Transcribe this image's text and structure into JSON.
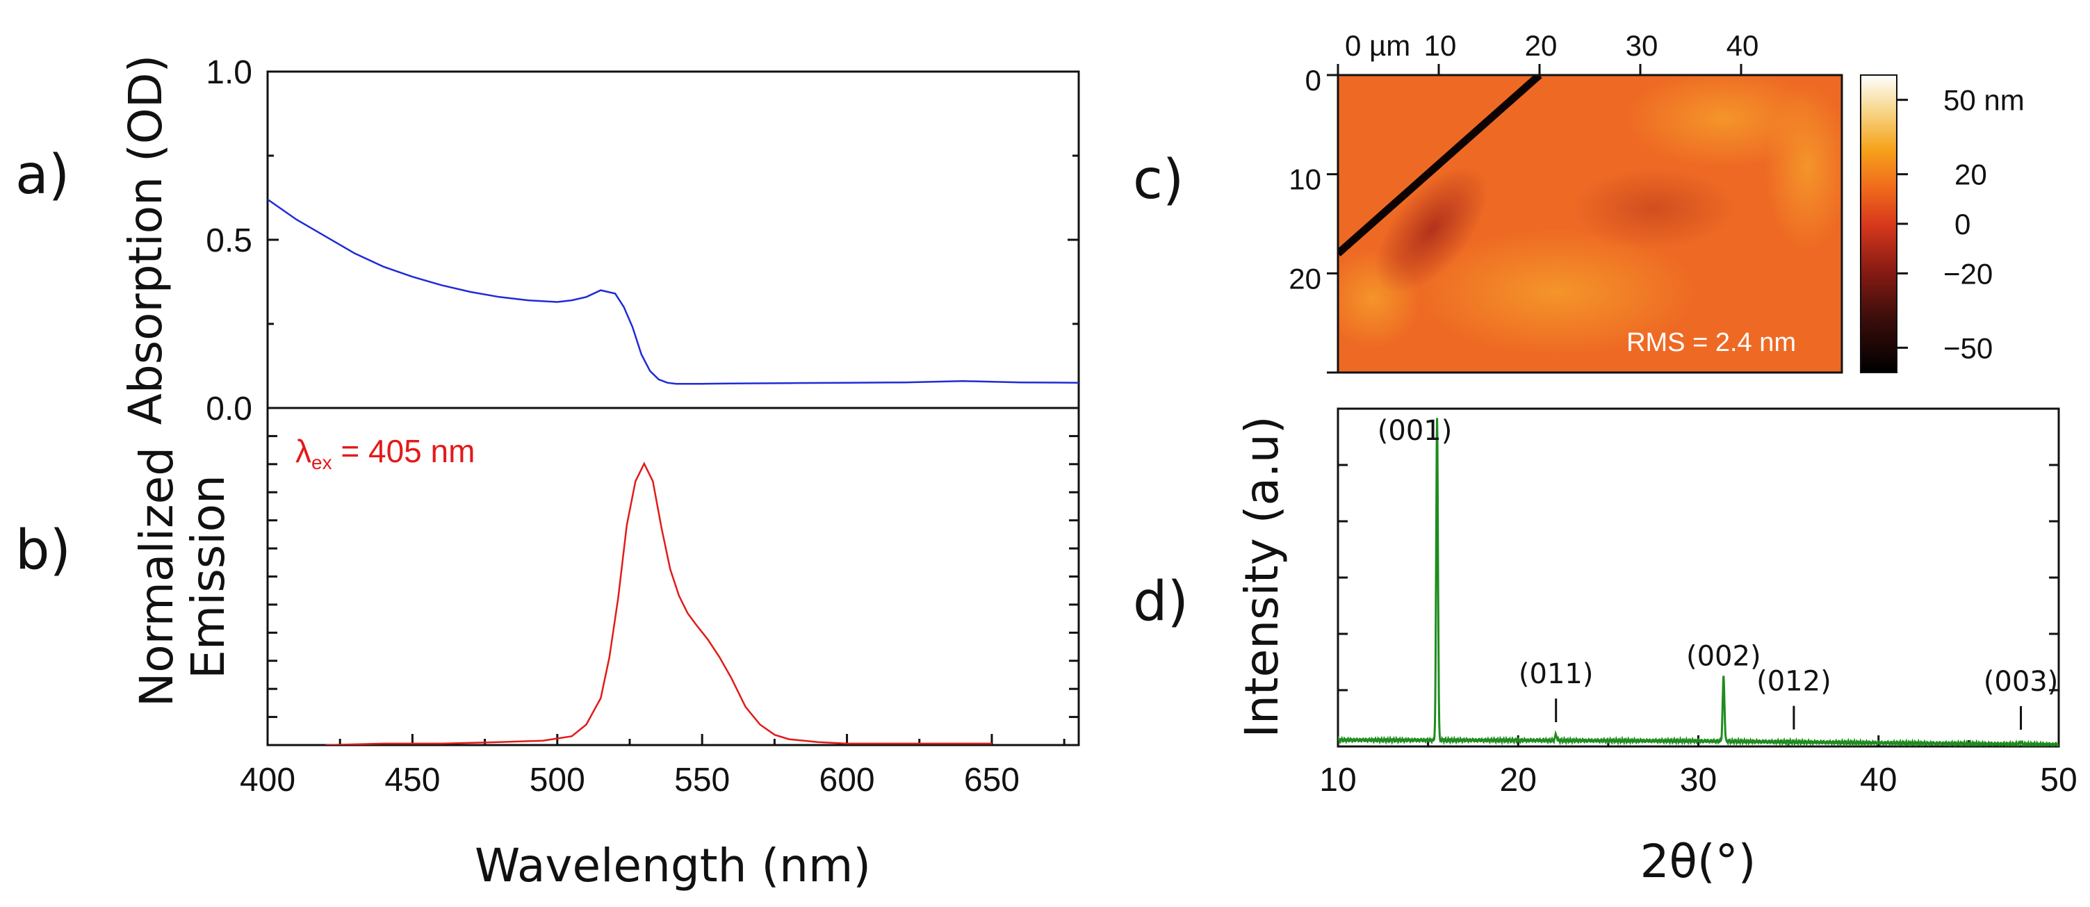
{
  "panel_labels": {
    "a": "a)",
    "b": "b)",
    "c": "c)",
    "d": "d)"
  },
  "chart_data": [
    {
      "id": "a",
      "type": "line",
      "title": "",
      "xlabel": "",
      "ylabel": "Absorption (OD)",
      "xlim": [
        400,
        680
      ],
      "ylim": [
        0,
        1.0
      ],
      "yticks": [
        0.0,
        0.5,
        1.0
      ],
      "ytick_labels": [
        "0.0",
        "0.5",
        "1.0"
      ],
      "color": "#1f2bd6",
      "series": [
        {
          "name": "Absorption",
          "x": [
            400,
            410,
            420,
            430,
            440,
            450,
            460,
            470,
            480,
            490,
            500,
            505,
            510,
            515,
            520,
            523,
            526,
            529,
            532,
            535,
            538,
            541,
            545,
            550,
            560,
            580,
            600,
            620,
            640,
            650,
            660,
            680
          ],
          "y": [
            0.62,
            0.56,
            0.51,
            0.46,
            0.42,
            0.39,
            0.365,
            0.345,
            0.33,
            0.32,
            0.315,
            0.32,
            0.33,
            0.35,
            0.34,
            0.3,
            0.24,
            0.16,
            0.11,
            0.085,
            0.075,
            0.072,
            0.072,
            0.072,
            0.073,
            0.074,
            0.075,
            0.076,
            0.08,
            0.078,
            0.076,
            0.075
          ]
        }
      ]
    },
    {
      "id": "b",
      "type": "line",
      "title": "",
      "xlabel": "Wavelength (nm)",
      "ylabel_line1": "Normalized",
      "ylabel_line2": "Emission",
      "xlim": [
        400,
        680
      ],
      "ylim": [
        0,
        1.15
      ],
      "xticks": [
        400,
        450,
        500,
        550,
        600,
        650
      ],
      "xtick_labels": [
        "400",
        "450",
        "500",
        "550",
        "600",
        "650"
      ],
      "annotation": {
        "prefix": "λ",
        "sub": "ex",
        "suffix": " = 405 nm"
      },
      "color": "#e31a1a",
      "series": [
        {
          "name": "Emission",
          "x": [
            420,
            440,
            460,
            480,
            495,
            505,
            510,
            515,
            518,
            521,
            524,
            527,
            530,
            533,
            536,
            539,
            542,
            545,
            548,
            552,
            556,
            560,
            565,
            570,
            575,
            580,
            590,
            600,
            620,
            640,
            650
          ],
          "y": [
            0.0,
            0.005,
            0.005,
            0.01,
            0.015,
            0.03,
            0.07,
            0.16,
            0.3,
            0.5,
            0.75,
            0.9,
            0.96,
            0.9,
            0.74,
            0.6,
            0.51,
            0.45,
            0.41,
            0.36,
            0.3,
            0.23,
            0.13,
            0.07,
            0.035,
            0.02,
            0.01,
            0.005,
            0.005,
            0.005,
            0.005
          ]
        }
      ]
    },
    {
      "id": "c",
      "type": "heatmap",
      "title": "",
      "x_ticks": [
        0,
        10,
        20,
        30,
        40
      ],
      "x_tick_labels": [
        "0 µm",
        "10",
        "20",
        "30",
        "40"
      ],
      "xlim": [
        0,
        50
      ],
      "y_ticks": [
        0,
        10,
        20
      ],
      "y_tick_labels": [
        "0",
        "10",
        "20"
      ],
      "ylim": [
        0,
        30
      ],
      "colorbar_ticks": [
        50,
        20,
        0,
        -20,
        -50
      ],
      "colorbar_tick_labels": [
        "50 nm",
        "20",
        "0",
        "−20",
        "−50"
      ],
      "colorbar_range": [
        -60,
        60
      ],
      "annotation": "RMS = 2.4 nm",
      "base_color": "#ee6a24",
      "scratch": {
        "from": [
          0,
          18
        ],
        "to": [
          20,
          0
        ]
      }
    },
    {
      "id": "d",
      "type": "line",
      "title": "",
      "xlabel": "2θ(°)",
      "ylabel": "Intensity (a.u)",
      "xlim": [
        10,
        50
      ],
      "ylim": [
        0,
        1.05
      ],
      "xticks": [
        10,
        20,
        30,
        40,
        50
      ],
      "xtick_labels": [
        "10",
        "20",
        "30",
        "40",
        "50"
      ],
      "color": "#1e8c1e",
      "peaks": [
        {
          "label": "(001)",
          "x": 15.5,
          "height": 1.0
        },
        {
          "label": "(011)",
          "x": 22.1,
          "height": 0.018
        },
        {
          "label": "(002)",
          "x": 31.4,
          "height": 0.2
        },
        {
          "label": "(012)",
          "x": 35.3,
          "height": 0.0
        },
        {
          "label": "(003)",
          "x": 47.9,
          "height": 0.006
        }
      ],
      "baseline": {
        "x": [
          10,
          20,
          30,
          40,
          50
        ],
        "y": [
          0.02,
          0.019,
          0.017,
          0.011,
          0.006
        ]
      }
    }
  ]
}
